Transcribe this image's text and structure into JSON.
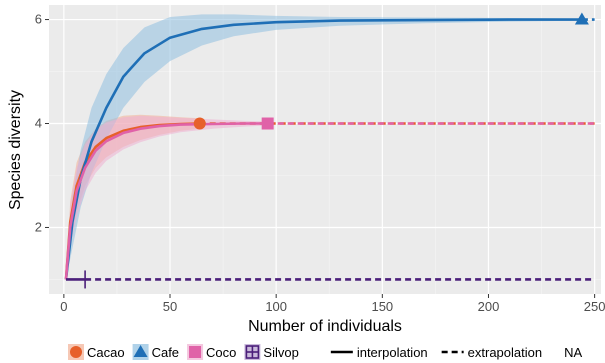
{
  "chart_data": {
    "type": "line",
    "xlabel": "Number of individuals",
    "ylabel": "Species diversity",
    "xlim": [
      -7,
      253
    ],
    "ylim": [
      0.72,
      6.28
    ],
    "x_ticks": [
      0,
      50,
      100,
      150,
      200,
      250
    ],
    "y_ticks": [
      2,
      4,
      6
    ],
    "grid": true,
    "legend_position": "bottom",
    "colors": {
      "panel_background": "#ebebeb",
      "grid": "#ffffff"
    },
    "series": [
      {
        "name": "Cacao",
        "color": "#e7602a",
        "band_color": "#f2b196",
        "marker": "circle",
        "observed": {
          "x": 64,
          "y": 4.0
        },
        "interpolation": {
          "x": [
            1,
            3,
            6,
            10,
            15,
            20,
            28,
            36,
            45,
            55,
            64
          ],
          "y": [
            1.0,
            2.1,
            2.8,
            3.25,
            3.55,
            3.72,
            3.86,
            3.93,
            3.97,
            3.99,
            4.0
          ]
        },
        "interpolation_lower": [
          1.0,
          1.7,
          2.3,
          2.8,
          3.15,
          3.35,
          3.55,
          3.68,
          3.78,
          3.86,
          3.9
        ],
        "interpolation_upper": [
          1.0,
          2.5,
          3.25,
          3.65,
          3.9,
          4.05,
          4.15,
          4.17,
          4.15,
          4.12,
          4.1
        ],
        "extrapolation": {
          "x": [
            64,
            250
          ],
          "y": [
            4.0,
            4.0
          ]
        }
      },
      {
        "name": "Cafe",
        "color": "#1f6fb6",
        "band_color": "#8fbfe0",
        "marker": "triangle",
        "observed": {
          "x": 244,
          "y": 6.0
        },
        "interpolation": {
          "x": [
            1,
            4,
            8,
            13,
            20,
            28,
            38,
            50,
            65,
            80,
            100,
            130,
            170,
            210,
            244
          ],
          "y": [
            1.0,
            2.1,
            2.95,
            3.65,
            4.3,
            4.9,
            5.35,
            5.65,
            5.82,
            5.9,
            5.95,
            5.98,
            5.99,
            6.0,
            6.0
          ]
        },
        "interpolation_lower": [
          1.0,
          1.6,
          2.4,
          3.05,
          3.7,
          4.3,
          4.8,
          5.2,
          5.5,
          5.68,
          5.8,
          5.88,
          5.93,
          5.96,
          5.98
        ],
        "interpolation_upper": [
          1.0,
          2.6,
          3.5,
          4.3,
          4.95,
          5.45,
          5.85,
          6.05,
          6.1,
          6.1,
          6.07,
          6.05,
          6.04,
          6.03,
          6.02
        ],
        "extrapolation": {
          "x": [
            244,
            250
          ],
          "y": [
            6.0,
            6.0
          ]
        }
      },
      {
        "name": "Coco",
        "color": "#e062a8",
        "band_color": "#efb0d2",
        "marker": "square",
        "observed": {
          "x": 96,
          "y": 4.0
        },
        "interpolation": {
          "x": [
            1,
            3,
            6,
            10,
            15,
            20,
            28,
            36,
            45,
            55,
            70,
            85,
            96
          ],
          "y": [
            1.0,
            2.0,
            2.7,
            3.15,
            3.48,
            3.66,
            3.82,
            3.9,
            3.95,
            3.98,
            3.99,
            4.0,
            4.0
          ]
        },
        "interpolation_lower": [
          1.0,
          1.6,
          2.2,
          2.7,
          3.05,
          3.28,
          3.5,
          3.64,
          3.75,
          3.83,
          3.9,
          3.94,
          3.96
        ],
        "interpolation_upper": [
          1.0,
          2.4,
          3.15,
          3.6,
          3.88,
          4.02,
          4.12,
          4.15,
          4.13,
          4.11,
          4.08,
          4.05,
          4.04
        ],
        "extrapolation": {
          "x": [
            96,
            250
          ],
          "y": [
            4.0,
            4.0
          ]
        }
      },
      {
        "name": "Silvop",
        "color": "#4b1f7a",
        "band_color": "#b49ccc",
        "marker": "square-cross",
        "observed": {
          "x": 10,
          "y": 1.0
        },
        "interpolation": {
          "x": [
            1,
            10
          ],
          "y": [
            1.0,
            1.0
          ]
        },
        "interpolation_lower": [
          1.0,
          1.0
        ],
        "interpolation_upper": [
          1.0,
          1.0
        ],
        "extrapolation": {
          "x": [
            10,
            250
          ],
          "y": [
            1.0,
            1.0
          ]
        }
      }
    ],
    "linetype_legend": [
      "interpolation",
      "extrapolation",
      "NA"
    ]
  }
}
